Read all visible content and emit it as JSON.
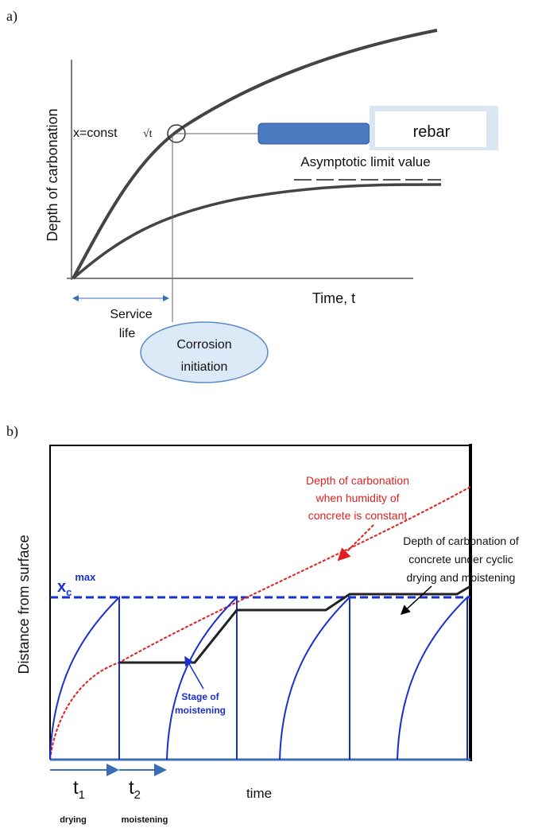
{
  "panel_a": {
    "label": "a)",
    "y_axis_label": "Depth of carbonation",
    "x_axis_label": "Time, t",
    "x_const": "x=const",
    "sqrt_t": "√t",
    "rebar": "rebar",
    "asymptotic_label": "Asymptotic limit value",
    "service_life": [
      "Service",
      "life"
    ],
    "corrosion_initiation": [
      "Corrosion",
      "initiation"
    ]
  },
  "panel_b": {
    "label": "b)",
    "y_axis_label": "Distance from surface",
    "x_axis_label": "time",
    "xc_max": {
      "base": "x",
      "sub": "c",
      "sup": "max"
    },
    "constant_humidity_label": [
      "Depth of carbonation",
      "when humidity of",
      "concrete is constant"
    ],
    "cyclic_label": [
      "Depth of carbonation of",
      "concrete  under cyclic",
      "drying and moistening"
    ],
    "moistening_stage": [
      "Stage of",
      "moistening"
    ],
    "t1": {
      "base": "t",
      "sub": "1",
      "note": "drying"
    },
    "t2": {
      "base": "t",
      "sub": "2",
      "note": "moistening"
    }
  }
}
